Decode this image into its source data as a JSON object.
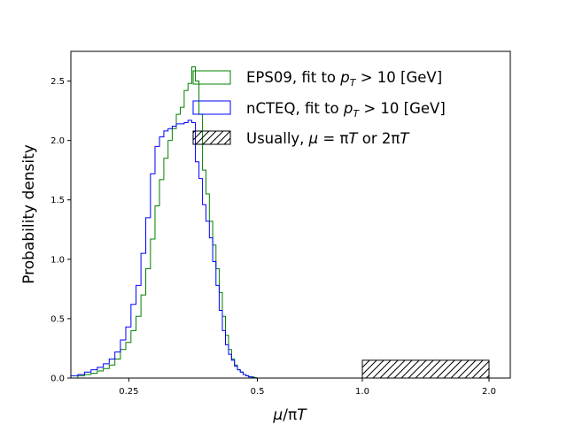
{
  "chart_data": {
    "type": "histogram",
    "xlabel": "μ/πT",
    "ylabel": "Probability density",
    "ylim": [
      0,
      2.75
    ],
    "x_scale": "piecewise-log",
    "x_ticks": [
      "0.25",
      "0.5",
      "1.0",
      "2.0"
    ],
    "y_ticks": [
      "0.0",
      "0.5",
      "1.0",
      "1.5",
      "2.0",
      "2.5"
    ],
    "legend_position": "top-right",
    "series": [
      {
        "name": "EPS09, fit to p_T > 10 [GeV]",
        "color": "#008000",
        "bin_start": 0.183,
        "bin_width": 0.007,
        "values": [
          0.0,
          0.02,
          0.03,
          0.04,
          0.06,
          0.08,
          0.11,
          0.16,
          0.24,
          0.3,
          0.4,
          0.52,
          0.7,
          0.92,
          1.17,
          1.45,
          1.67,
          1.85,
          2.0,
          2.1,
          2.22,
          2.28,
          2.42,
          2.48,
          2.62,
          2.5,
          2.22,
          1.75,
          1.55,
          1.32,
          1.12,
          0.92,
          0.72,
          0.52,
          0.36,
          0.24,
          0.16,
          0.11,
          0.07,
          0.05,
          0.03,
          0.02,
          0.01,
          0.01,
          0.005,
          0.0
        ]
      },
      {
        "name": "nCTEQ, fit to p_T > 10 [GeV]",
        "color": "#0000ff",
        "bin_start": 0.183,
        "bin_width": 0.007,
        "values": [
          0.02,
          0.03,
          0.05,
          0.07,
          0.09,
          0.12,
          0.16,
          0.22,
          0.32,
          0.43,
          0.62,
          0.78,
          1.05,
          1.35,
          1.72,
          1.95,
          2.03,
          2.08,
          2.1,
          2.12,
          2.14,
          2.14,
          2.15,
          2.17,
          2.15,
          1.82,
          1.68,
          1.46,
          1.32,
          1.18,
          0.98,
          0.78,
          0.57,
          0.4,
          0.28,
          0.2,
          0.15,
          0.1,
          0.07,
          0.05,
          0.03,
          0.02,
          0.01,
          0.005,
          0.0
        ]
      }
    ],
    "band": {
      "name": "Usually, μ = πT or 2πT",
      "x": [
        1.0,
        2.0
      ],
      "height": 0.15,
      "hatch": "////"
    }
  },
  "legend": {
    "eps09_prefix": "EPS09, fit to ",
    "ncteq_prefix": "nCTEQ, fit to ",
    "pt_p": "p",
    "pt_sub": "T",
    "pt_rest": " > 10 [GeV]",
    "usually_prefix": "Usually, ",
    "mu": "μ",
    "eq_pi": " = π",
    "T1": "T",
    "or_2pi": " or 2π",
    "T2": "T"
  },
  "xlabel_parts": {
    "mu": "μ",
    "slash_pi": "/π",
    "T": "T"
  }
}
